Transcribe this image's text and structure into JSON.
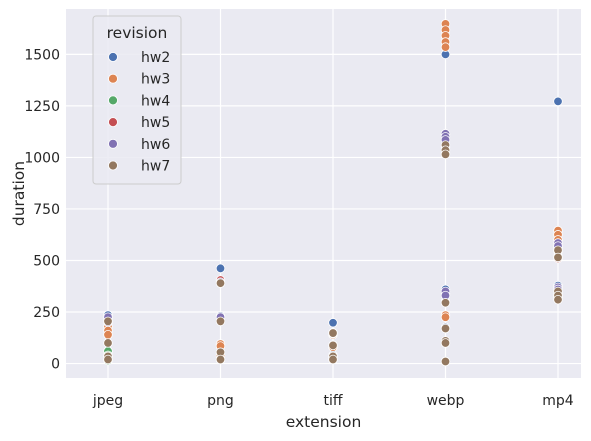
{
  "chart_data": {
    "type": "scatter",
    "xlabel": "extension",
    "ylabel": "duration",
    "categories": [
      "jpeg",
      "png",
      "tiff",
      "webp",
      "mp4"
    ],
    "ylim": [
      -70,
      1720
    ],
    "yticks": [
      0,
      250,
      500,
      750,
      1000,
      1250,
      1500
    ],
    "grid": true,
    "legend": {
      "title": "revision",
      "placement": "top-left"
    },
    "series": [
      {
        "name": "hw2",
        "color": "#4c72b0",
        "points": [
          [
            "jpeg",
            235
          ],
          [
            "jpeg",
            210
          ],
          [
            "jpeg",
            100
          ],
          [
            "jpeg",
            35
          ],
          [
            "png",
            462
          ],
          [
            "png",
            230
          ],
          [
            "png",
            95
          ],
          [
            "png",
            50
          ],
          [
            "png",
            20
          ],
          [
            "tiff",
            198
          ],
          [
            "tiff",
            150
          ],
          [
            "tiff",
            90
          ],
          [
            "tiff",
            40
          ],
          [
            "tiff",
            20
          ],
          [
            "webp",
            1500
          ],
          [
            "webp",
            1110
          ],
          [
            "webp",
            1050
          ],
          [
            "webp",
            360
          ],
          [
            "webp",
            300
          ],
          [
            "webp",
            175
          ],
          [
            "webp",
            100
          ],
          [
            "webp",
            10
          ],
          [
            "mp4",
            1272
          ],
          [
            "mp4",
            600
          ],
          [
            "mp4",
            560
          ],
          [
            "mp4",
            520
          ],
          [
            "mp4",
            378
          ],
          [
            "mp4",
            340
          ],
          [
            "mp4",
            320
          ]
        ]
      },
      {
        "name": "hw3",
        "color": "#dd8452",
        "points": [
          [
            "jpeg",
            180
          ],
          [
            "jpeg",
            160
          ],
          [
            "jpeg",
            140
          ],
          [
            "jpeg",
            60
          ],
          [
            "jpeg",
            20
          ],
          [
            "png",
            95
          ],
          [
            "png",
            85
          ],
          [
            "png",
            40
          ],
          [
            "tiff",
            140
          ],
          [
            "tiff",
            80
          ],
          [
            "tiff",
            30
          ],
          [
            "webp",
            1648
          ],
          [
            "webp",
            1618
          ],
          [
            "webp",
            1590
          ],
          [
            "webp",
            1560
          ],
          [
            "webp",
            1535
          ],
          [
            "webp",
            340
          ],
          [
            "webp",
            235
          ],
          [
            "webp",
            225
          ],
          [
            "mp4",
            645
          ],
          [
            "mp4",
            625
          ],
          [
            "mp4",
            600
          ]
        ]
      },
      {
        "name": "hw4",
        "color": "#55a868",
        "points": [
          [
            "jpeg",
            60
          ],
          [
            "jpeg",
            40
          ],
          [
            "jpeg",
            25
          ],
          [
            "jpeg",
            15
          ],
          [
            "png",
            20
          ],
          [
            "tiff",
            25
          ],
          [
            "webp",
            10
          ],
          [
            "mp4",
            330
          ]
        ]
      },
      {
        "name": "hw5",
        "color": "#c44e52",
        "points": [
          [
            "png",
            405
          ],
          [
            "webp",
            1020
          ],
          [
            "mp4",
            510
          ]
        ]
      },
      {
        "name": "hw6",
        "color": "#8172b3",
        "points": [
          [
            "jpeg",
            225
          ],
          [
            "jpeg",
            200
          ],
          [
            "png",
            225
          ],
          [
            "png",
            395
          ],
          [
            "tiff",
            145
          ],
          [
            "webp",
            1115
          ],
          [
            "webp",
            1100
          ],
          [
            "webp",
            1085
          ],
          [
            "webp",
            350
          ],
          [
            "webp",
            330
          ],
          [
            "mp4",
            585
          ],
          [
            "mp4",
            570
          ],
          [
            "mp4",
            545
          ],
          [
            "mp4",
            370
          ],
          [
            "mp4",
            360
          ]
        ]
      },
      {
        "name": "hw7",
        "color": "#937860",
        "points": [
          [
            "jpeg",
            205
          ],
          [
            "jpeg",
            100
          ],
          [
            "jpeg",
            35
          ],
          [
            "jpeg",
            20
          ],
          [
            "png",
            390
          ],
          [
            "png",
            205
          ],
          [
            "png",
            55
          ],
          [
            "png",
            20
          ],
          [
            "tiff",
            148
          ],
          [
            "tiff",
            88
          ],
          [
            "tiff",
            35
          ],
          [
            "tiff",
            20
          ],
          [
            "webp",
            1060
          ],
          [
            "webp",
            1035
          ],
          [
            "webp",
            1015
          ],
          [
            "webp",
            295
          ],
          [
            "webp",
            170
          ],
          [
            "webp",
            110
          ],
          [
            "webp",
            100
          ],
          [
            "webp",
            10
          ],
          [
            "mp4",
            550
          ],
          [
            "mp4",
            515
          ],
          [
            "mp4",
            350
          ],
          [
            "mp4",
            330
          ],
          [
            "mp4",
            310
          ]
        ]
      }
    ]
  }
}
